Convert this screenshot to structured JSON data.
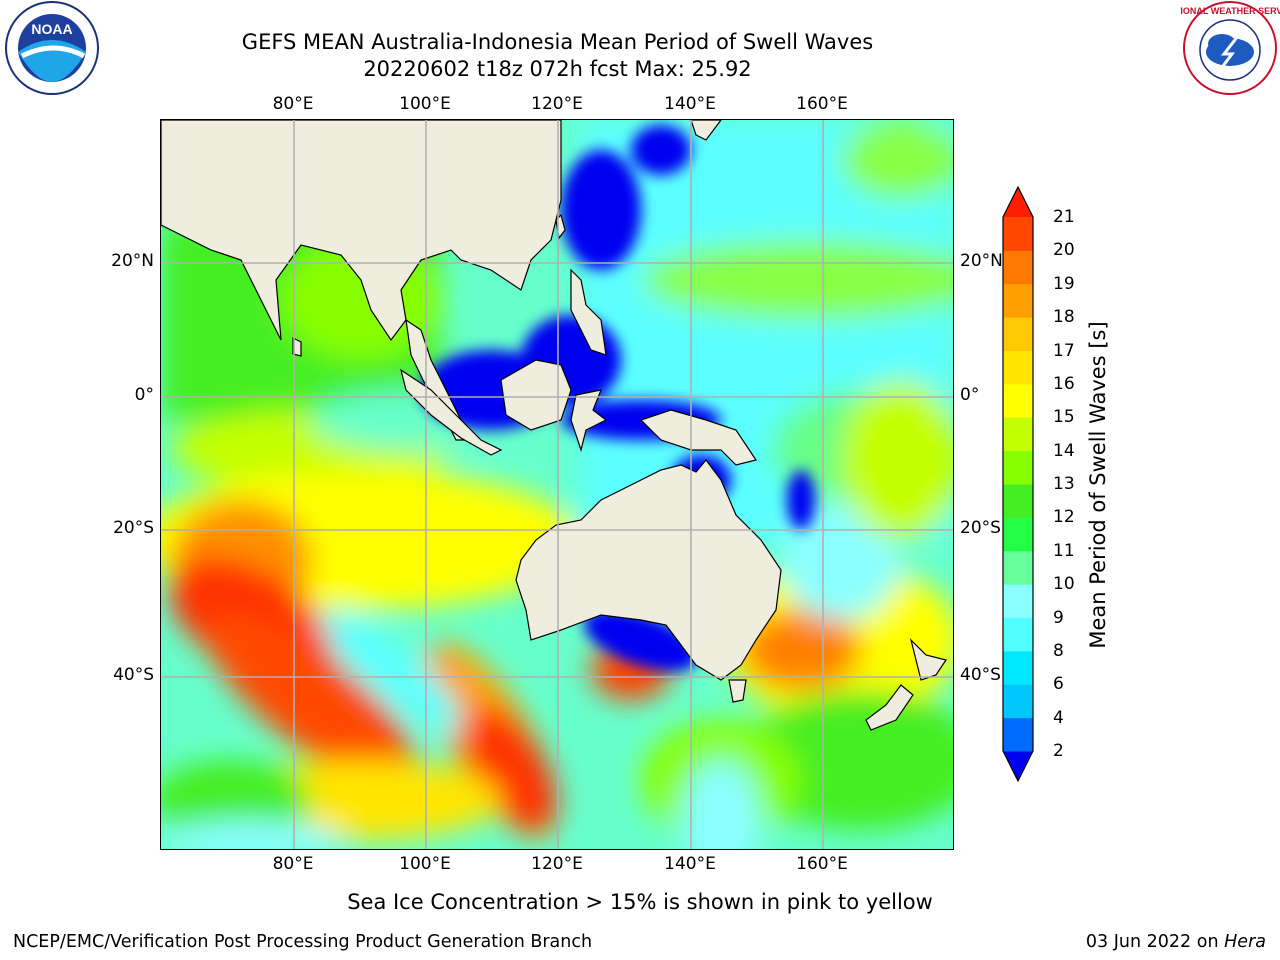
{
  "header": {
    "title_line1": "GEFS MEAN Australia-Indonesia Mean Period of Swell Waves",
    "title_line2": "20220602 t18z 072h fcst   Max: 25.92"
  },
  "map": {
    "lon_ticks": [
      "80°E",
      "100°E",
      "120°E",
      "140°E",
      "160°E"
    ],
    "lat_ticks": [
      "20°N",
      "0°",
      "20°S",
      "40°S"
    ],
    "land_color": "#efedde",
    "grid_color": "#b0b0b0"
  },
  "colorbar": {
    "label": "Mean Period of Swell Waves [s]",
    "ticks": [
      "21",
      "20",
      "19",
      "18",
      "17",
      "16",
      "15",
      "14",
      "13",
      "12",
      "11",
      "10",
      "9",
      "8",
      "6",
      "4",
      "2"
    ],
    "colors": [
      "#0000f0",
      "#006cff",
      "#00c8ff",
      "#00e8ff",
      "#50ffff",
      "#8affff",
      "#66ff99",
      "#22ff44",
      "#44ee22",
      "#88ff00",
      "#c4ff00",
      "#ffff00",
      "#ffe600",
      "#ffc800",
      "#ffa000",
      "#ff7800",
      "#ff4800",
      "#ff1e00"
    ]
  },
  "footer": {
    "note": "Sea Ice Concentration > 15% is shown in pink to yellow",
    "credit_left": "NCEP/EMC/Verification Post Processing Product Generation Branch",
    "credit_date": "03 Jun 2022 on",
    "credit_host": "Hera"
  },
  "logos": {
    "noaa_text": "NOAA",
    "nws_text": "NATIONAL WEATHER SERVICE"
  }
}
